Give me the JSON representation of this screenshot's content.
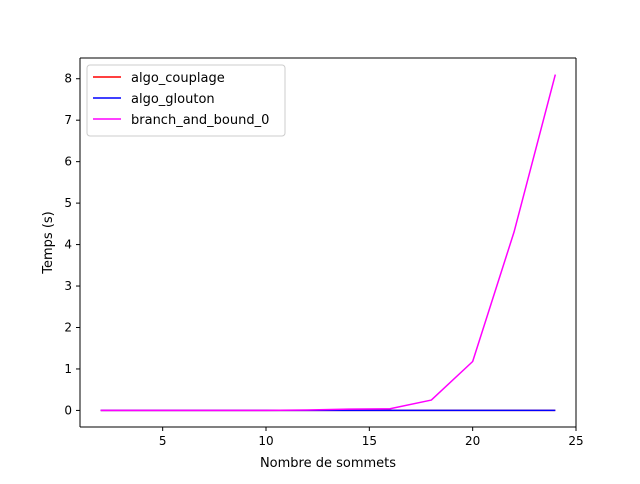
{
  "chart_data": {
    "type": "line",
    "xlabel": "Nombre de sommets",
    "ylabel": "Temps (s)",
    "xlim": [
      1.0,
      25.0
    ],
    "ylim": [
      -0.4,
      8.5
    ],
    "xticks": [
      5,
      10,
      15,
      20,
      25
    ],
    "xtick_labels": [
      "5",
      "10",
      "15",
      "20",
      "25"
    ],
    "yticks": [
      0,
      1,
      2,
      3,
      4,
      5,
      6,
      7,
      8
    ],
    "ytick_labels": [
      "0",
      "1",
      "2",
      "3",
      "4",
      "5",
      "6",
      "7",
      "8"
    ],
    "grid": false,
    "legend_position": "top-left",
    "x": [
      2,
      4,
      6,
      8,
      10,
      12,
      14,
      16,
      18,
      20,
      22,
      24
    ],
    "series": [
      {
        "name": "algo_couplage",
        "color": "#ff0000",
        "values": [
          0,
          0,
          0,
          0,
          0,
          0,
          0,
          0,
          0,
          0,
          0,
          0
        ]
      },
      {
        "name": "algo_glouton",
        "color": "#0000ff",
        "values": [
          0,
          0,
          0,
          0,
          0,
          0,
          0,
          0,
          0,
          0,
          0,
          0
        ]
      },
      {
        "name": "branch_and_bound_0",
        "color": "#ff00ff",
        "values": [
          0,
          0,
          0,
          0,
          0,
          0.01,
          0.03,
          0.04,
          0.25,
          1.18,
          4.3,
          8.1
        ]
      }
    ]
  }
}
